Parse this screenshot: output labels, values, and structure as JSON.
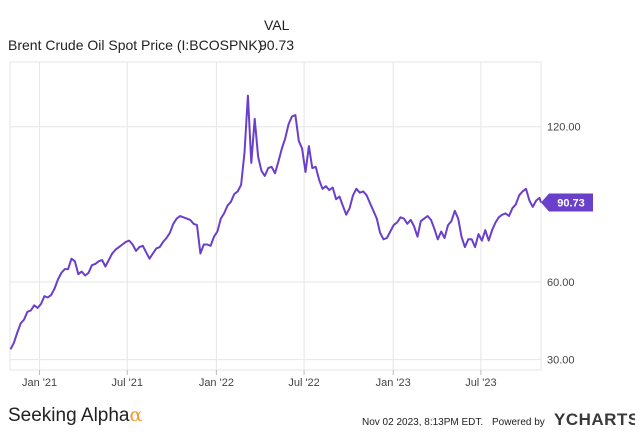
{
  "legend": {
    "column_header": "VAL",
    "series_name": "Brent Crude Oil Spot Price (I:BCOSPNK)",
    "series_value": "90.73"
  },
  "footer": {
    "brand_text": "Seeking Alpha",
    "brand_symbol": "α",
    "timestamp": "Nov 02 2023, 8:13PM EDT.",
    "powered_by": "Powered by",
    "provider_y": "Y",
    "provider_rest": "CHARTS"
  },
  "colors": {
    "line": "#6a3fc9",
    "grid": "#e6e6e6",
    "logo_alpha": "#f29a2e"
  },
  "chart_data": {
    "type": "line",
    "title": "",
    "xlabel": "",
    "ylabel": "",
    "ylim": [
      26,
      145
    ],
    "y_ticks": [
      30,
      60,
      120
    ],
    "y_tick_labels": [
      "30.00",
      "60.00",
      "120.00"
    ],
    "x_ticks": [
      "2021-01",
      "2021-07",
      "2022-01",
      "2022-07",
      "2023-01",
      "2023-07"
    ],
    "x_tick_labels": [
      "Jan '21",
      "Jul '21",
      "Jan '22",
      "Jul '22",
      "Jan '23",
      "Jul '23"
    ],
    "xlim": [
      "2020-11-01",
      "2023-11-02"
    ],
    "last_value_label": "90.73",
    "grid": true,
    "series": [
      {
        "name": "Brent Crude Oil Spot Price (I:BCOSPNK)",
        "x": [
          "2020-11-02",
          "2020-11-09",
          "2020-11-16",
          "2020-11-23",
          "2020-11-30",
          "2020-12-07",
          "2020-12-14",
          "2020-12-21",
          "2020-12-28",
          "2021-01-04",
          "2021-01-11",
          "2021-01-18",
          "2021-01-25",
          "2021-02-01",
          "2021-02-08",
          "2021-02-15",
          "2021-02-22",
          "2021-03-01",
          "2021-03-08",
          "2021-03-15",
          "2021-03-22",
          "2021-03-29",
          "2021-04-05",
          "2021-04-12",
          "2021-04-19",
          "2021-04-26",
          "2021-05-03",
          "2021-05-10",
          "2021-05-17",
          "2021-05-24",
          "2021-05-31",
          "2021-06-07",
          "2021-06-14",
          "2021-06-21",
          "2021-06-28",
          "2021-07-05",
          "2021-07-12",
          "2021-07-19",
          "2021-07-26",
          "2021-08-02",
          "2021-08-09",
          "2021-08-16",
          "2021-08-23",
          "2021-08-30",
          "2021-09-06",
          "2021-09-13",
          "2021-09-20",
          "2021-09-27",
          "2021-10-04",
          "2021-10-11",
          "2021-10-18",
          "2021-10-25",
          "2021-11-01",
          "2021-11-08",
          "2021-11-15",
          "2021-11-22",
          "2021-11-29",
          "2021-12-06",
          "2021-12-13",
          "2021-12-20",
          "2021-12-27",
          "2022-01-03",
          "2022-01-10",
          "2022-01-17",
          "2022-01-24",
          "2022-01-31",
          "2022-02-07",
          "2022-02-14",
          "2022-02-21",
          "2022-02-28",
          "2022-03-07",
          "2022-03-14",
          "2022-03-21",
          "2022-03-28",
          "2022-04-04",
          "2022-04-11",
          "2022-04-18",
          "2022-04-25",
          "2022-05-02",
          "2022-05-09",
          "2022-05-16",
          "2022-05-23",
          "2022-05-30",
          "2022-06-06",
          "2022-06-13",
          "2022-06-20",
          "2022-06-27",
          "2022-07-04",
          "2022-07-11",
          "2022-07-18",
          "2022-07-25",
          "2022-08-01",
          "2022-08-08",
          "2022-08-15",
          "2022-08-22",
          "2022-08-29",
          "2022-09-05",
          "2022-09-12",
          "2022-09-19",
          "2022-09-26",
          "2022-10-03",
          "2022-10-10",
          "2022-10-17",
          "2022-10-24",
          "2022-10-31",
          "2022-11-07",
          "2022-11-14",
          "2022-11-21",
          "2022-11-28",
          "2022-12-05",
          "2022-12-12",
          "2022-12-19",
          "2022-12-26",
          "2023-01-02",
          "2023-01-09",
          "2023-01-16",
          "2023-01-23",
          "2023-01-30",
          "2023-02-06",
          "2023-02-13",
          "2023-02-20",
          "2023-02-27",
          "2023-03-06",
          "2023-03-13",
          "2023-03-20",
          "2023-03-27",
          "2023-04-03",
          "2023-04-10",
          "2023-04-17",
          "2023-04-24",
          "2023-05-01",
          "2023-05-08",
          "2023-05-15",
          "2023-05-22",
          "2023-05-29",
          "2023-06-05",
          "2023-06-12",
          "2023-06-19",
          "2023-06-26",
          "2023-07-03",
          "2023-07-10",
          "2023-07-17",
          "2023-07-24",
          "2023-07-31",
          "2023-08-07",
          "2023-08-14",
          "2023-08-21",
          "2023-08-28",
          "2023-09-04",
          "2023-09-11",
          "2023-09-18",
          "2023-09-25",
          "2023-10-02",
          "2023-10-09",
          "2023-10-16",
          "2023-10-23",
          "2023-10-30",
          "2023-11-02"
        ],
        "values": [
          34.0,
          36.5,
          40.5,
          44.0,
          45.5,
          48.5,
          49.0,
          51.0,
          50.0,
          51.5,
          54.5,
          54.0,
          55.0,
          57.5,
          61.0,
          63.5,
          65.0,
          65.0,
          69.0,
          68.0,
          63.0,
          64.0,
          62.5,
          63.5,
          66.5,
          67.0,
          68.0,
          68.5,
          66.0,
          68.5,
          71.0,
          72.5,
          73.5,
          74.5,
          75.5,
          76.0,
          74.5,
          72.0,
          73.5,
          74.0,
          71.5,
          69.0,
          71.0,
          73.0,
          73.5,
          75.5,
          77.0,
          79.0,
          82.5,
          84.5,
          85.5,
          85.0,
          84.5,
          84.0,
          82.5,
          82.0,
          71.0,
          74.5,
          74.5,
          74.0,
          77.5,
          79.5,
          84.5,
          86.5,
          89.5,
          91.0,
          94.0,
          95.0,
          97.5,
          110.0,
          132.0,
          106.0,
          123.0,
          108.5,
          103.0,
          101.0,
          104.0,
          104.5,
          102.0,
          106.5,
          111.5,
          115.5,
          121.0,
          124.0,
          124.5,
          114.5,
          111.5,
          102.5,
          112.5,
          104.0,
          104.5,
          99.5,
          96.0,
          97.0,
          95.5,
          96.5,
          92.0,
          93.0,
          89.5,
          86.0,
          88.5,
          93.5,
          96.0,
          94.5,
          95.0,
          93.5,
          90.5,
          87.5,
          84.5,
          79.0,
          76.5,
          77.0,
          79.5,
          82.0,
          83.0,
          85.0,
          84.5,
          82.5,
          84.0,
          81.5,
          77.5,
          83.5,
          84.5,
          85.5,
          84.0,
          80.5,
          76.5,
          79.5,
          77.0,
          82.0,
          83.5,
          87.5,
          84.5,
          77.5,
          73.5,
          76.5,
          76.5,
          73.5,
          78.5,
          76.0,
          80.0,
          76.0,
          80.0,
          83.0,
          85.0,
          86.0,
          86.5,
          85.5,
          88.5,
          90.0,
          93.5,
          95.0,
          96.0,
          91.5,
          89.0,
          91.5,
          92.5,
          90.73
        ]
      }
    ]
  }
}
